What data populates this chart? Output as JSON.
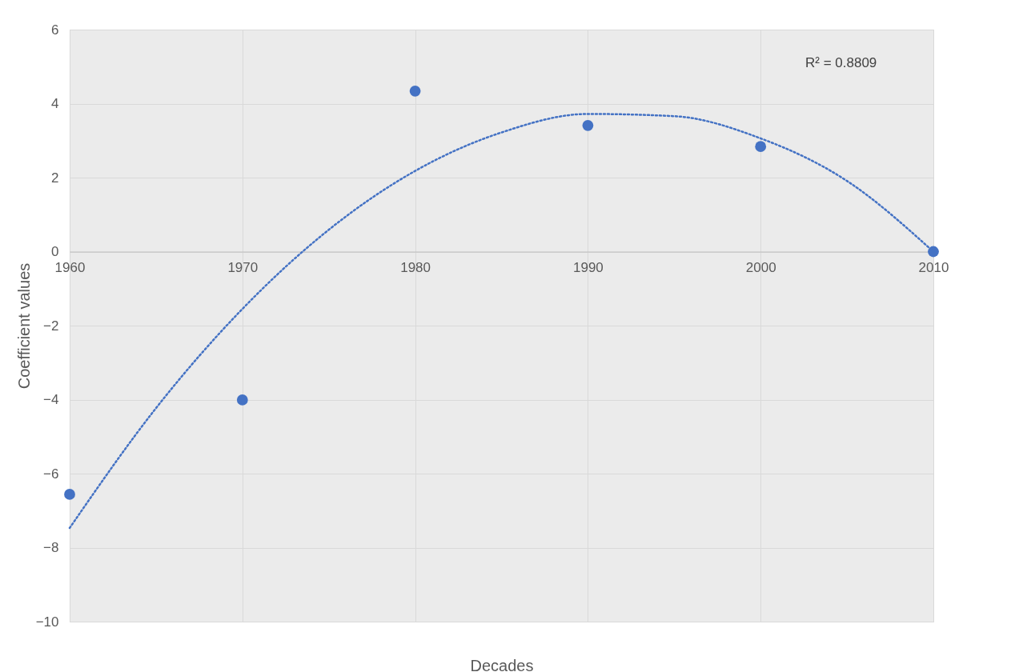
{
  "chart_data": {
    "type": "scatter",
    "xlabel": "Decades",
    "ylabel": "Coefficient values",
    "annotations": [
      "R² = 0.8809"
    ],
    "x": [
      1960,
      1970,
      1980,
      1990,
      2000,
      2010
    ],
    "series": [
      {
        "color": "#4472c4",
        "marker": "circle",
        "values": [
          -6.56,
          -4.01,
          4.34,
          3.41,
          2.84,
          0
        ]
      },
      {
        "type": "line",
        "color": "#4472c4",
        "line_style": "dotted",
        "marker": "none",
        "x": [
          1960,
          1965,
          1970,
          1975,
          1980,
          1985,
          1990,
          1995,
          2000,
          2005,
          2010
        ],
        "values": [
          -7.47,
          -4.23,
          -1.55,
          0.59,
          2.18,
          3.22,
          3.72,
          3.66,
          3.06,
          1.91,
          0.0
        ]
      }
    ],
    "xlim": [
      1960,
      2010
    ],
    "xticks": [
      1960,
      1970,
      1980,
      1990,
      2000,
      2010
    ],
    "ylim": [
      -10,
      6
    ],
    "yticks": [
      -10,
      -8,
      -6,
      -4,
      -2,
      0,
      2,
      4,
      6
    ],
    "grid": true
  }
}
